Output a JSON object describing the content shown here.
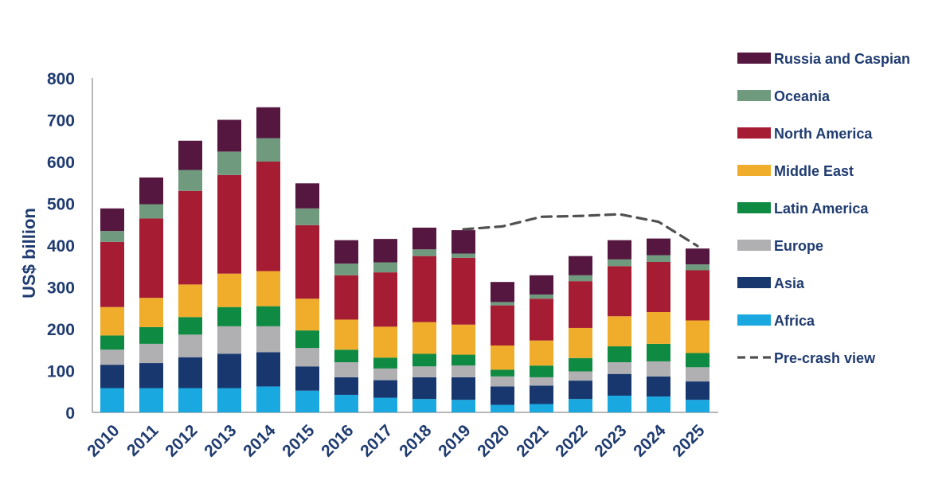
{
  "chart_data": {
    "type": "bar",
    "stacked": true,
    "categories": [
      "2010",
      "2011",
      "2012",
      "2013",
      "2014",
      "2015",
      "2016",
      "2017",
      "2018",
      "2019",
      "2020",
      "2021",
      "2022",
      "2023",
      "2024",
      "2025"
    ],
    "ylabel": "US$ billion",
    "ylim": [
      0,
      800
    ],
    "yticks": [
      0,
      100,
      200,
      300,
      400,
      500,
      600,
      700,
      800
    ],
    "grid": false,
    "legend_position": "right",
    "series": [
      {
        "name": "Africa",
        "color": "#19a8e0",
        "values": [
          58,
          58,
          58,
          58,
          62,
          52,
          42,
          35,
          32,
          30,
          18,
          20,
          32,
          40,
          38,
          30
        ]
      },
      {
        "name": "Asia",
        "color": "#17376e",
        "values": [
          56,
          60,
          74,
          82,
          82,
          58,
          42,
          42,
          52,
          54,
          44,
          44,
          44,
          52,
          48,
          44
        ]
      },
      {
        "name": "Europe",
        "color": "#b0b0b3",
        "values": [
          36,
          46,
          54,
          66,
          62,
          44,
          36,
          28,
          26,
          28,
          24,
          20,
          22,
          28,
          36,
          34
        ]
      },
      {
        "name": "Latin America",
        "color": "#0f8a43",
        "values": [
          34,
          40,
          42,
          46,
          48,
          42,
          30,
          26,
          30,
          26,
          16,
          28,
          32,
          38,
          42,
          34
        ]
      },
      {
        "name": "Middle East",
        "color": "#f0ac2b",
        "values": [
          68,
          70,
          78,
          80,
          84,
          76,
          72,
          74,
          76,
          72,
          58,
          60,
          72,
          72,
          76,
          78
        ]
      },
      {
        "name": "North America",
        "color": "#a51c33",
        "values": [
          156,
          190,
          224,
          236,
          262,
          176,
          106,
          130,
          158,
          160,
          96,
          100,
          112,
          120,
          120,
          120
        ]
      },
      {
        "name": "Oceania",
        "color": "#6f9a7e",
        "values": [
          26,
          34,
          50,
          56,
          56,
          40,
          28,
          24,
          16,
          10,
          8,
          10,
          14,
          16,
          16,
          14
        ]
      },
      {
        "name": "Russia and Caspian",
        "color": "#55173f",
        "values": [
          54,
          64,
          70,
          76,
          74,
          60,
          56,
          56,
          52,
          56,
          48,
          46,
          46,
          46,
          40,
          38
        ]
      }
    ],
    "overlay_line": {
      "name": "Pre-crash view",
      "style": "dashed",
      "color": "#505050",
      "start_index": 9,
      "values": [
        438,
        445,
        468,
        470,
        474,
        456,
        398
      ]
    }
  }
}
